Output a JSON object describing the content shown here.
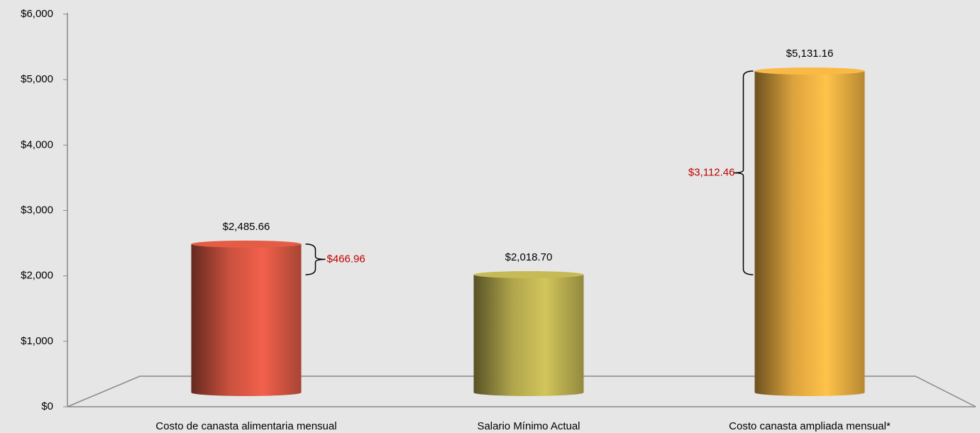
{
  "chart_data": {
    "type": "bar",
    "categories": [
      "Costo  de canasta alimentaria mensual",
      "Salario Mínimo Actual",
      "Costo canasta ampliada mensual*"
    ],
    "values": [
      2485.66,
      2018.7,
      5131.16
    ],
    "value_labels": [
      "$2,485.66",
      "$2,018.70",
      "$5,131.16"
    ],
    "colors": [
      "#e05a45",
      "#c2b654",
      "#f4b544"
    ],
    "ylim": [
      0,
      6000
    ],
    "yticks": [
      {
        "value": 0,
        "label": "$0"
      },
      {
        "value": 1000,
        "label": "$1,000"
      },
      {
        "value": 2000,
        "label": "$2,000"
      },
      {
        "value": 3000,
        "label": "$3,000"
      },
      {
        "value": 4000,
        "label": "$4,000"
      },
      {
        "value": 5000,
        "label": "$5,000"
      },
      {
        "value": 6000,
        "label": "$6,000"
      }
    ],
    "annotations": [
      {
        "text": "$466.96",
        "value": 466.96,
        "bar": 0,
        "side": "right"
      },
      {
        "text": "$3,112.46",
        "value": 3112.46,
        "bar": 2,
        "side": "left"
      }
    ],
    "annotation_color": "#c00000"
  }
}
